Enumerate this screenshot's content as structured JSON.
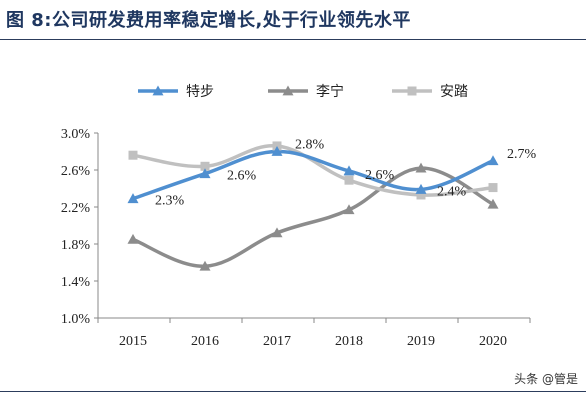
{
  "title": "图 8:公司研发费用率稳定增长,处于行业领先水平",
  "watermark": "头条 @管是",
  "chart_data": {
    "type": "line",
    "x": [
      "2015",
      "2016",
      "2017",
      "2018",
      "2019",
      "2020"
    ],
    "ylim": [
      0.01,
      0.03
    ],
    "yticks": [
      "3.0%",
      "2.6%",
      "2.2%",
      "1.8%",
      "1.4%",
      "1.0%"
    ],
    "ytick_values": [
      0.03,
      0.026,
      0.022,
      0.018,
      0.014,
      0.01
    ],
    "grid": false,
    "legend": "top",
    "series": [
      {
        "name": "特步",
        "color": "#4f8fd0",
        "marker": "triangle",
        "values": [
          0.0229,
          0.0256,
          0.028,
          0.0259,
          0.0239,
          0.027
        ],
        "labels": [
          "2.3%",
          "2.6%",
          "2.8%",
          "2.6%",
          "2.4%",
          "2.7%"
        ]
      },
      {
        "name": "李宁",
        "color": "#8c8c8c",
        "marker": "triangle",
        "values": [
          0.0185,
          0.0156,
          0.0192,
          0.0217,
          0.0262,
          0.0223
        ],
        "labels": []
      },
      {
        "name": "安踏",
        "color": "#c0c0c0",
        "marker": "square",
        "values": [
          0.0276,
          0.0264,
          0.0286,
          0.0249,
          0.0233,
          0.0241
        ],
        "labels": []
      }
    ]
  }
}
